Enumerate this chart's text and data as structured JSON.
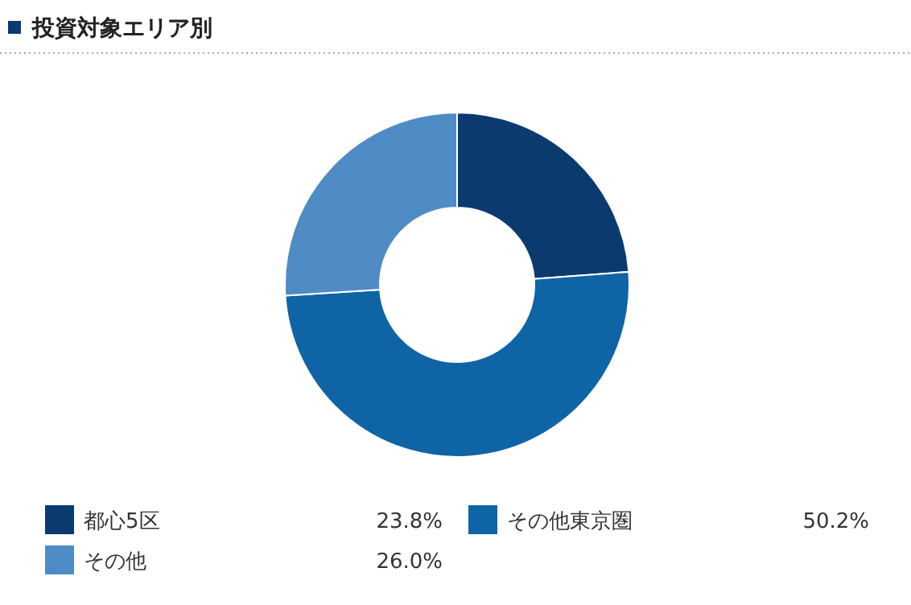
{
  "chart_data": {
    "type": "donut",
    "title": "投資対象エリア別",
    "categories": [
      "都心5区",
      "その他東京圏",
      "その他"
    ],
    "values": [
      23.8,
      50.2,
      26.0
    ],
    "value_labels": [
      "23.8%",
      "50.2%",
      "26.0%"
    ],
    "colors": [
      "#0b3a6f",
      "#0f64a6",
      "#4f8bc5"
    ],
    "legend": "bottom"
  }
}
